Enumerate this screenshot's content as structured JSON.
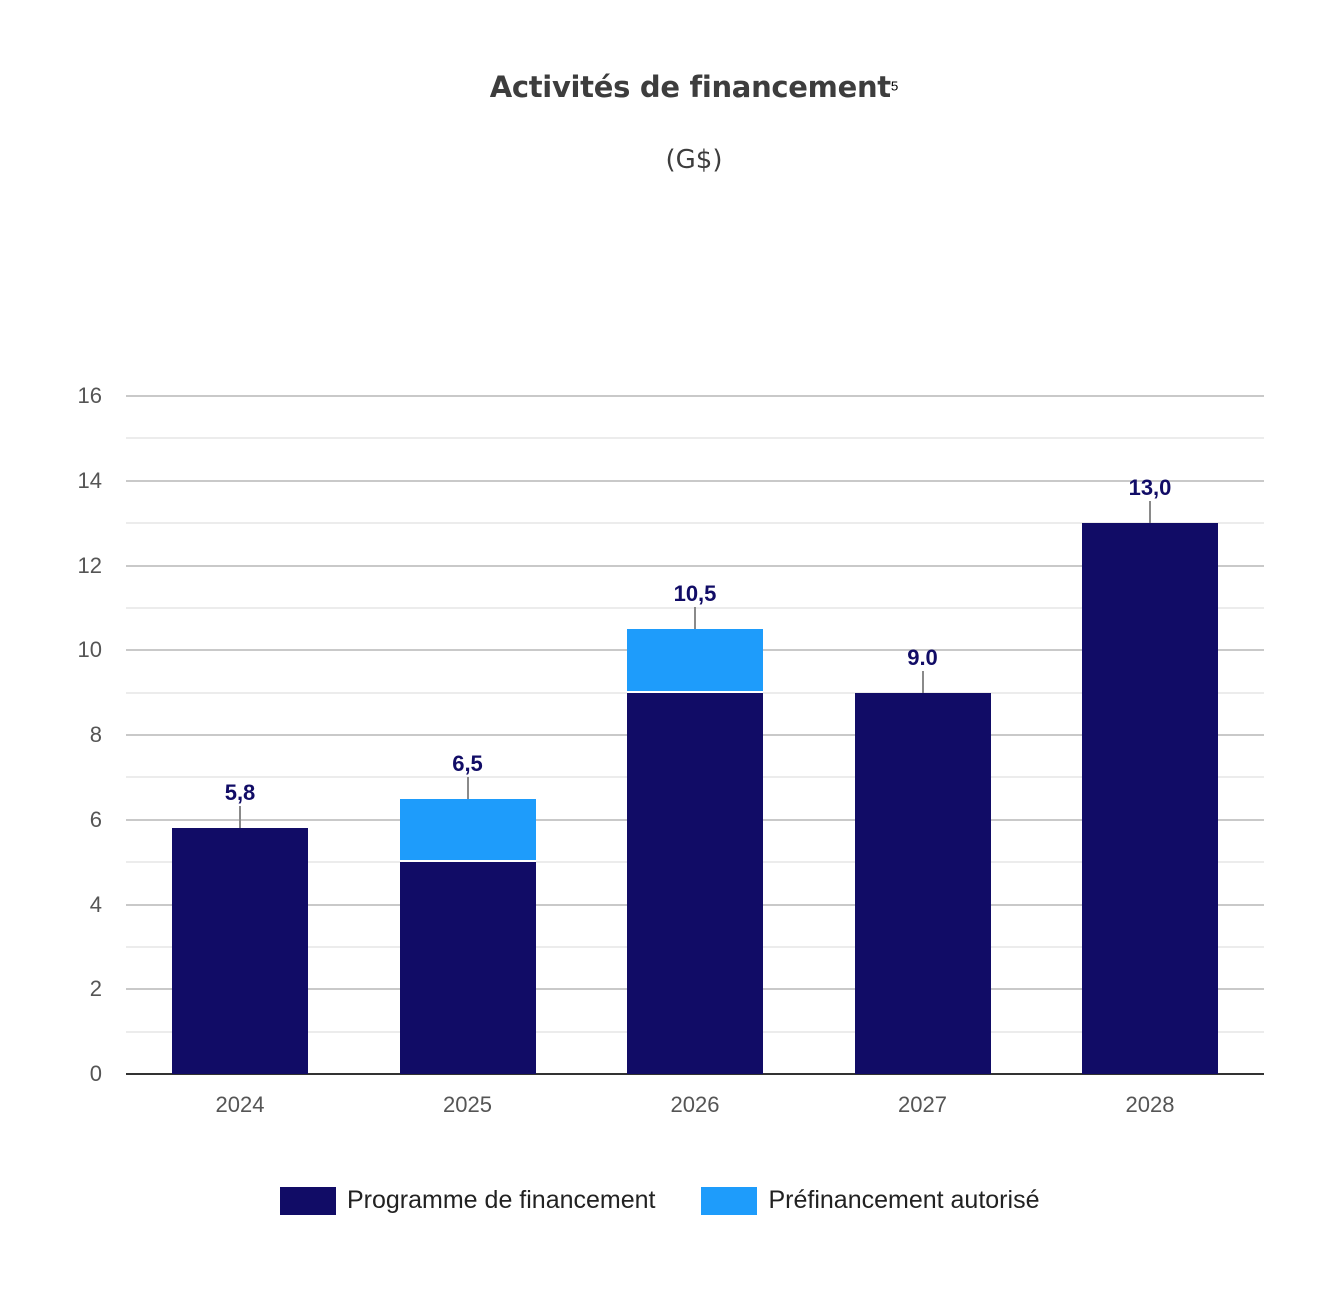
{
  "header": {
    "title": "Activités de financement",
    "footnote": "5",
    "subtitle": "(G$)"
  },
  "colors": {
    "programme": "#110c66",
    "prefinancement": "#1e9cfb",
    "label": "#110c66"
  },
  "axis": {
    "y_ticks": [
      "0",
      "2",
      "4",
      "6",
      "8",
      "10",
      "12",
      "14",
      "16"
    ],
    "x_ticks": [
      "2024",
      "2025",
      "2026",
      "2027",
      "2028"
    ]
  },
  "labels": [
    "5,8",
    "6,5",
    "10,5",
    "9.0",
    "13,0"
  ],
  "legend": {
    "items": [
      {
        "label": "Programme de financement",
        "color": "#110c66"
      },
      {
        "label": "Préfinancement autorisé",
        "color": "#1e9cfb"
      }
    ]
  },
  "chart_data": {
    "type": "bar",
    "stacked": true,
    "title": "Activités de financement",
    "subtitle": "(G$)",
    "categories": [
      "2024",
      "2025",
      "2026",
      "2027",
      "2028"
    ],
    "series": [
      {
        "name": "Programme de financement",
        "color": "#110c66",
        "values": [
          5.8,
          5.0,
          9.0,
          9.0,
          13.0
        ]
      },
      {
        "name": "Préfinancement autorisé",
        "color": "#1e9cfb",
        "values": [
          0,
          1.5,
          1.5,
          0,
          0
        ]
      }
    ],
    "totals": [
      5.8,
      6.5,
      10.5,
      9.0,
      13.0
    ],
    "data_labels": [
      "5,8",
      "6,5",
      "10,5",
      "9.0",
      "13,0"
    ],
    "xlabel": "",
    "ylabel": "",
    "ylim": [
      0,
      16
    ],
    "yticks": [
      0,
      2,
      4,
      6,
      8,
      10,
      12,
      14,
      16
    ],
    "grid": true,
    "legend_position": "bottom"
  }
}
